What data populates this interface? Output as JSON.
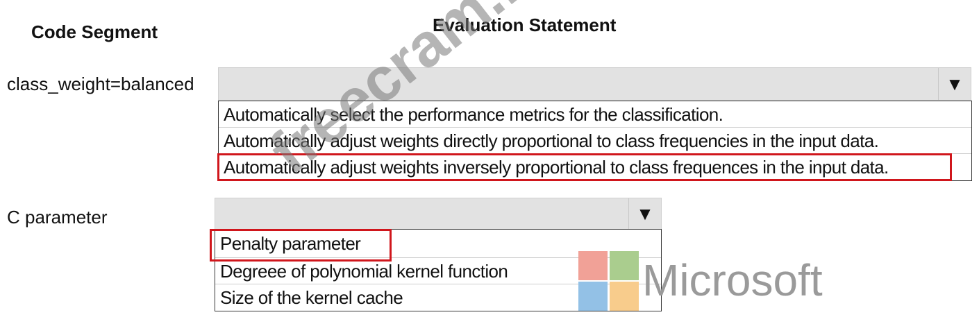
{
  "headers": {
    "code_segment": "Code Segment",
    "evaluation_statement": "Evaluation Statement"
  },
  "rows": [
    {
      "label": "class_weight=balanced",
      "options": [
        "Automatically select the performance metrics for the classification.",
        "Automatically adjust weights directly proportional to class frequencies in the input data.",
        "Automatically adjust weights inversely proportional to class frequences in the input data."
      ],
      "selected_index": 2
    },
    {
      "label": "C parameter",
      "options": [
        "Penalty parameter",
        "Degreee of polynomial kernel function",
        "Size of the kernel cache"
      ],
      "selected_index": 0
    }
  ],
  "icons": {
    "dropdown": "triangle-down-icon"
  },
  "colors": {
    "selection": "#d0161c",
    "ms_red": "#f1a197",
    "ms_green": "#aacd8e",
    "ms_blue": "#93c1e6",
    "ms_yellow": "#f8cc8c"
  },
  "logo": {
    "text": "Microsoft"
  },
  "watermark": "freecram.net"
}
